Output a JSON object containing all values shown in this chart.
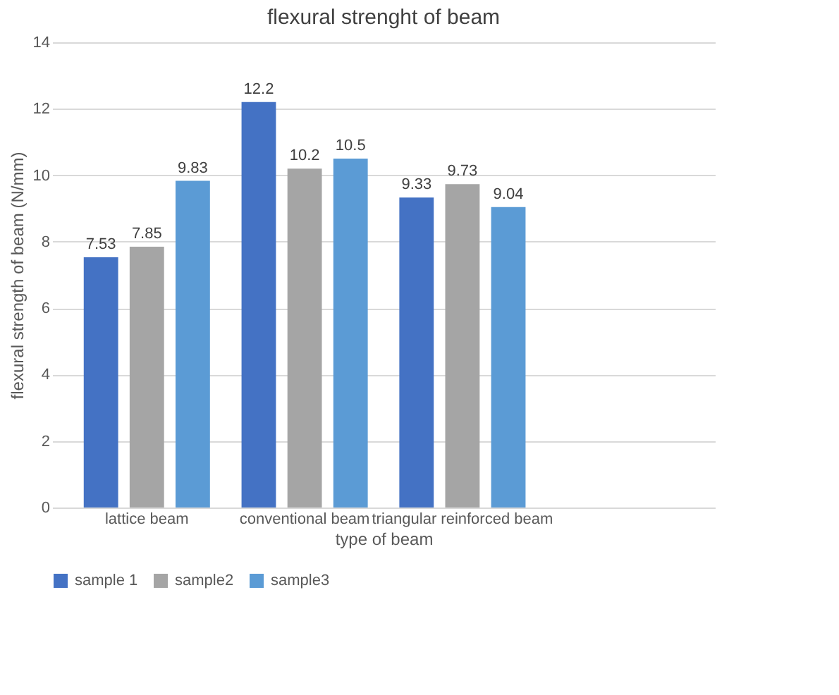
{
  "chart_data": {
    "type": "bar",
    "title": "flexural strenght of beam",
    "xlabel": "type of beam",
    "ylabel": "flexural strength of beam (N/mm)",
    "categories": [
      "lattice beam",
      "conventional beam",
      "triangular reinforced beam",
      null
    ],
    "series": [
      {
        "name": "sample 1",
        "color": "#4472c4",
        "values": [
          7.53,
          12.2,
          9.33,
          null
        ]
      },
      {
        "name": "sample2",
        "color": "#a5a5a5",
        "values": [
          7.85,
          10.2,
          9.73,
          null
        ]
      },
      {
        "name": "sample3",
        "color": "#5b9bd5",
        "values": [
          9.83,
          10.5,
          9.04,
          null
        ]
      }
    ],
    "ylim": [
      0,
      14
    ],
    "yticks": [
      0,
      2,
      4,
      6,
      8,
      10,
      12,
      14
    ],
    "grid": "y",
    "legend": "bottom",
    "data_labels": true
  }
}
